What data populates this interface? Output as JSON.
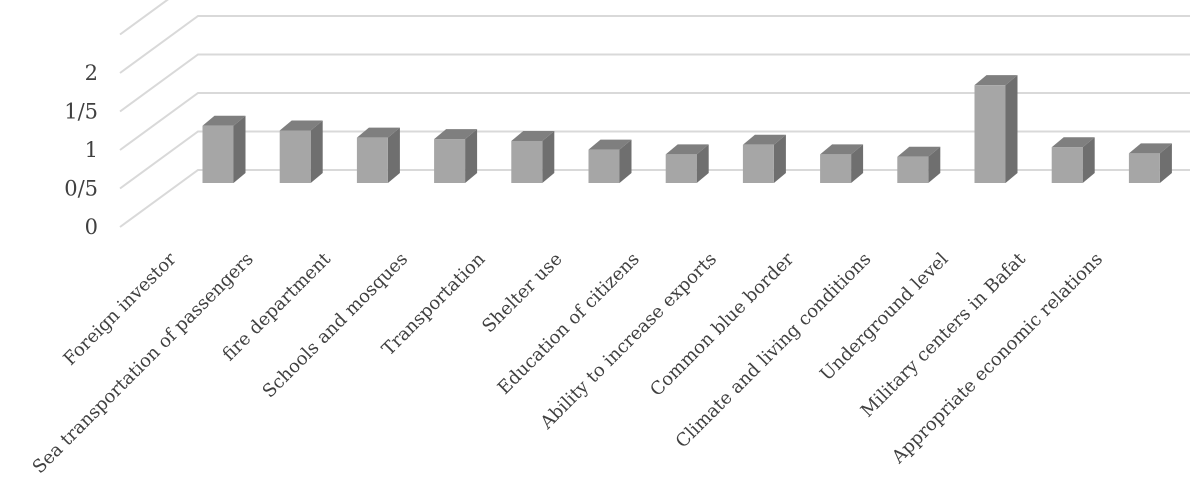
{
  "chart_data": {
    "type": "bar",
    "title": "",
    "xlabel": "",
    "ylabel": "",
    "ylim": [
      0,
      2.5
    ],
    "grid": true,
    "y_ticks": [
      "0",
      "0/5",
      "1",
      "1/5",
      "2"
    ],
    "categories": [
      "Foreign investor",
      "Sea transportation of passengers",
      "fire department",
      "Schools and mosques",
      "Transportation",
      "Shelter use",
      "Education of citizens",
      "Ability to increase exports",
      "Common blue border",
      "Climate and living conditions",
      "Underground level",
      "Military centers in Bafat",
      "Appropriate economic relations"
    ],
    "values": [
      1.2,
      1.1,
      0.95,
      0.92,
      0.88,
      0.7,
      0.6,
      0.8,
      0.6,
      0.55,
      2.05,
      0.75,
      0.62
    ],
    "colors": {
      "front": "#a6a6a6",
      "side": "#6f6f6f",
      "top": "#7f7f7f",
      "grid": "#d9d9d9",
      "text": "#404040"
    }
  }
}
